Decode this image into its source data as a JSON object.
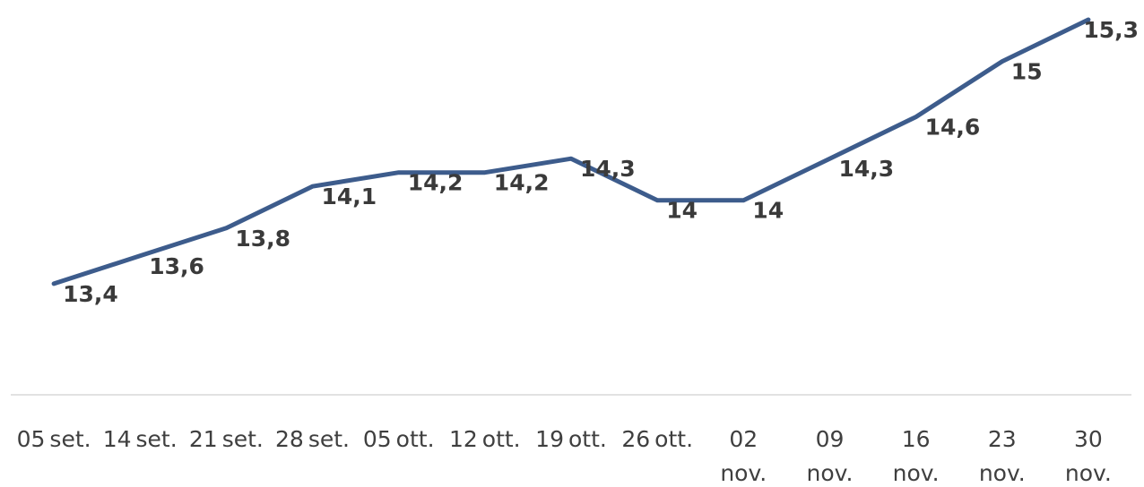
{
  "chart_data": {
    "type": "line",
    "title": "",
    "xlabel": "",
    "ylabel": "",
    "categories": [
      "05 set.",
      "14 set.",
      "21 set.",
      "28 set.",
      "05 ott.",
      "12 ott.",
      "19 ott.",
      "26 ott.",
      "02 nov.",
      "09 nov.",
      "16 nov.",
      "23 nov.",
      "30 nov."
    ],
    "series": [
      {
        "values": [
          13.4,
          13.6,
          13.8,
          14.1,
          14.2,
          14.2,
          14.3,
          14,
          14,
          14.3,
          14.6,
          15,
          15.3
        ],
        "labels": [
          "13,4",
          "13,6",
          "13,8",
          "14,1",
          "14,2",
          "14,2",
          "14,3",
          "14",
          "14",
          "14,3",
          "14,6",
          "15",
          "15,3"
        ],
        "color": "#3d5c8c"
      }
    ],
    "ylim": [
      12.6,
      15.3
    ],
    "grid": false,
    "legend": "none",
    "data_labels": true
  }
}
